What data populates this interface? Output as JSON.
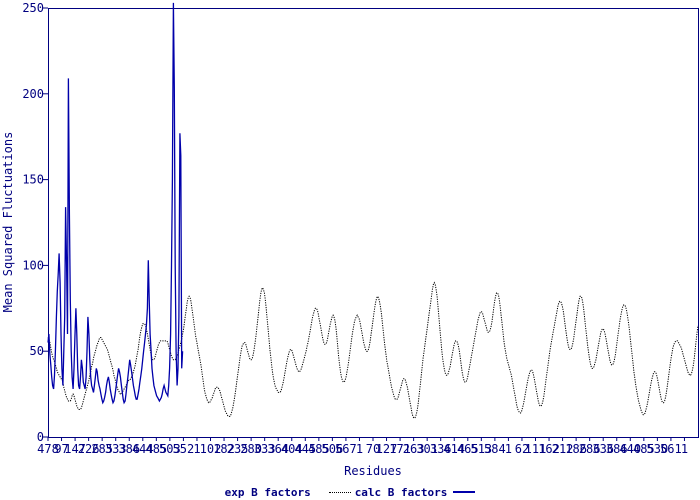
{
  "chart_data": {
    "type": "line",
    "title": "",
    "xlabel": "Residues",
    "ylabel": "Mean Squared Fluctuations",
    "ylim": [
      0,
      250
    ],
    "yticks": [
      0,
      50,
      100,
      150,
      200,
      250
    ],
    "xtick_labels": [
      "478",
      "97",
      "147",
      "226",
      "285",
      "333",
      "386",
      "444",
      "485",
      "503",
      "552",
      "1",
      "102",
      "182",
      "235",
      "280",
      "333",
      "364",
      "404",
      "445",
      "485",
      "506",
      "567",
      "1",
      "70",
      "127",
      "171",
      "263",
      "301",
      "336",
      "414",
      "465",
      "513",
      "584",
      "1",
      "62",
      "111",
      "162",
      "212",
      "186",
      "286",
      "336",
      "386",
      "440",
      "485",
      "530",
      "561",
      "1"
    ],
    "colors": {
      "exp": "#0000aa",
      "calc": "#000000",
      "axis": "#000080"
    },
    "n_points": 700,
    "series": [
      {
        "name": "calc B factors",
        "style": "dotted",
        "x_range": [
          0,
          700
        ],
        "values": [
          58,
          57,
          55,
          52,
          49,
          47,
          45,
          44,
          42,
          40,
          38,
          37,
          36,
          35,
          34,
          34,
          32,
          29,
          27,
          25,
          23,
          22,
          21,
          21,
          21,
          22,
          24,
          25,
          24,
          22,
          20,
          18,
          17,
          16,
          16,
          16,
          17,
          19,
          21,
          23,
          25,
          27,
          29,
          31,
          33,
          36,
          38,
          41,
          43,
          46,
          48,
          50,
          52,
          54,
          55,
          57,
          58,
          58,
          57,
          56,
          55,
          54,
          53,
          52,
          51,
          49,
          47,
          45,
          43,
          41,
          39,
          36,
          34,
          32,
          30,
          28,
          27,
          26,
          25,
          25,
          26,
          27,
          28,
          29,
          30,
          31,
          32,
          33,
          33,
          34,
          35,
          36,
          38,
          40,
          42,
          45,
          48,
          51,
          55,
          59,
          62,
          64,
          66,
          66,
          66,
          65,
          63,
          60,
          57,
          54,
          51,
          48,
          46,
          45,
          45,
          46,
          48,
          50,
          52,
          54,
          55,
          56,
          56,
          56,
          56,
          56,
          56,
          56,
          56,
          55,
          53,
          51,
          49,
          47,
          46,
          45,
          45,
          45,
          46,
          47,
          49,
          51,
          53,
          55,
          57,
          60,
          63,
          67,
          71,
          75,
          79,
          81,
          82,
          81,
          79,
          75,
          71,
          67,
          63,
          59,
          56,
          53,
          50,
          47,
          44,
          41,
          37,
          33,
          29,
          26,
          24,
          22,
          21,
          20,
          20,
          21,
          22,
          23,
          25,
          26,
          28,
          29,
          29,
          29,
          28,
          27,
          25,
          23,
          21,
          19,
          17,
          15,
          14,
          13,
          12,
          12,
          12,
          13,
          15,
          17,
          20,
          23,
          27,
          31,
          35,
          39,
          43,
          47,
          50,
          53,
          54,
          55,
          55,
          54,
          52,
          50,
          48,
          46,
          45,
          45,
          46,
          48,
          51,
          55,
          59,
          64,
          69,
          74,
          79,
          83,
          86,
          87,
          86,
          84,
          80,
          75,
          69,
          63,
          57,
          51,
          46,
          41,
          37,
          34,
          31,
          29,
          28,
          27,
          26,
          26,
          26,
          27,
          29,
          31,
          34,
          37,
          40,
          43,
          46,
          48,
          50,
          51,
          51,
          50,
          48,
          46,
          44,
          42,
          40,
          39,
          38,
          38,
          39,
          40,
          42,
          44,
          46,
          48,
          50,
          53,
          55,
          58,
          61,
          64,
          67,
          70,
          72,
          74,
          75,
          75,
          74,
          72,
          69,
          66,
          63,
          60,
          57,
          55,
          54,
          54,
          55,
          57,
          60,
          63,
          66,
          68,
          70,
          71,
          70,
          68,
          64,
          59,
          53,
          47,
          42,
          38,
          35,
          33,
          32,
          32,
          33,
          35,
          38,
          41,
          45,
          49,
          53,
          57,
          61,
          64,
          67,
          69,
          70,
          71,
          70,
          69,
          67,
          64,
          61,
          58,
          55,
          53,
          51,
          50,
          50,
          51,
          53,
          56,
          60,
          64,
          68,
          72,
          76,
          79,
          81,
          82,
          81,
          79,
          76,
          72,
          67,
          62,
          57,
          52,
          48,
          44,
          41,
          38,
          35,
          32,
          29,
          27,
          25,
          23,
          22,
          22,
          22,
          23,
          25,
          27,
          29,
          31,
          33,
          34,
          34,
          33,
          31,
          29,
          26,
          23,
          20,
          17,
          14,
          12,
          11,
          11,
          12,
          14,
          17,
          21,
          26,
          31,
          36,
          41,
          46,
          50,
          54,
          58,
          62,
          66,
          70,
          74,
          78,
          82,
          86,
          89,
          90,
          89,
          86,
          82,
          76,
          70,
          63,
          57,
          51,
          46,
          42,
          39,
          37,
          36,
          36,
          37,
          39,
          41,
          44,
          47,
          50,
          53,
          55,
          56,
          56,
          55,
          53,
          50,
          46,
          42,
          38,
          35,
          33,
          32,
          32,
          33,
          35,
          38,
          41,
          44,
          47,
          50,
          53,
          56,
          59,
          62,
          65,
          68,
          70,
          72,
          73,
          73,
          72,
          70,
          68,
          66,
          64,
          62,
          61,
          61,
          62,
          64,
          67,
          71,
          75,
          79,
          82,
          84,
          84,
          83,
          80,
          76,
          71,
          66,
          61,
          56,
          52,
          49,
          46,
          44,
          42,
          40,
          38,
          36,
          33,
          30,
          27,
          24,
          21,
          18,
          16,
          15,
          14,
          14,
          15,
          17,
          19,
          22,
          25,
          28,
          31,
          34,
          36,
          38,
          39,
          39,
          38,
          36,
          33,
          30,
          27,
          24,
          21,
          19,
          18,
          18,
          19,
          21,
          24,
          28,
          32,
          36,
          40,
          44,
          48,
          52,
          55,
          58,
          61,
          64,
          67,
          70,
          73,
          76,
          78,
          79,
          79,
          78,
          76,
          73,
          69,
          65,
          61,
          57,
          54,
          52,
          51,
          51,
          52,
          54,
          57,
          61,
          65,
          69,
          73,
          77,
          80,
          82,
          82,
          81,
          78,
          74,
          69,
          64,
          59,
          54,
          50,
          46,
          43,
          41,
          40,
          40,
          41,
          43,
          45,
          48,
          51,
          54,
          57,
          60,
          62,
          63,
          63,
          62,
          60,
          57,
          54,
          51,
          48,
          45,
          43,
          42,
          42,
          43,
          45,
          48,
          52,
          56,
          60,
          64,
          68,
          71,
          74,
          76,
          77,
          77,
          76,
          74,
          71,
          67,
          63,
          58,
          53,
          48,
          43,
          38,
          34,
          30,
          27,
          24,
          21,
          19,
          17,
          15,
          14,
          13,
          13,
          14,
          16,
          18,
          21,
          24,
          27,
          30,
          33,
          35,
          37,
          38,
          38,
          37,
          35,
          32,
          29,
          26,
          23,
          21,
          20,
          20,
          21,
          23,
          26,
          30,
          34,
          38,
          42,
          46,
          49,
          52,
          54,
          55,
          56,
          56,
          56,
          55,
          54,
          53,
          52,
          50,
          48,
          46,
          44,
          42,
          40,
          38,
          37,
          36,
          36,
          37,
          39,
          42,
          46,
          51,
          56,
          61,
          65
        ]
      },
      {
        "name": "exp B factors",
        "style": "solid",
        "x_range": [
          0,
          145
        ],
        "values": [
          55,
          60,
          48,
          42,
          35,
          30,
          28,
          36,
          50,
          70,
          85,
          95,
          107,
          90,
          60,
          40,
          30,
          50,
          70,
          134,
          100,
          60,
          209,
          130,
          80,
          50,
          35,
          28,
          40,
          58,
          75,
          60,
          40,
          30,
          28,
          35,
          45,
          40,
          32,
          30,
          28,
          35,
          50,
          70,
          60,
          45,
          35,
          30,
          28,
          26,
          30,
          35,
          40,
          38,
          33,
          30,
          28,
          25,
          22,
          20,
          21,
          23,
          26,
          30,
          33,
          35,
          32,
          28,
          25,
          22,
          20,
          21,
          24,
          28,
          32,
          36,
          40,
          38,
          35,
          30,
          26,
          22,
          20,
          21,
          25,
          30,
          35,
          40,
          45,
          42,
          38,
          34,
          30,
          27,
          24,
          22,
          22,
          25,
          28,
          32,
          36,
          40,
          45,
          50,
          55,
          60,
          65,
          75,
          103,
          80,
          60,
          50,
          40,
          35,
          30,
          28,
          26,
          24,
          23,
          22,
          21,
          22,
          23,
          25,
          28,
          30,
          28,
          26,
          25,
          24,
          30,
          40,
          60,
          100,
          150,
          253,
          204,
          100,
          50,
          30,
          40,
          70,
          177,
          164,
          40,
          50
        ]
      }
    ]
  }
}
